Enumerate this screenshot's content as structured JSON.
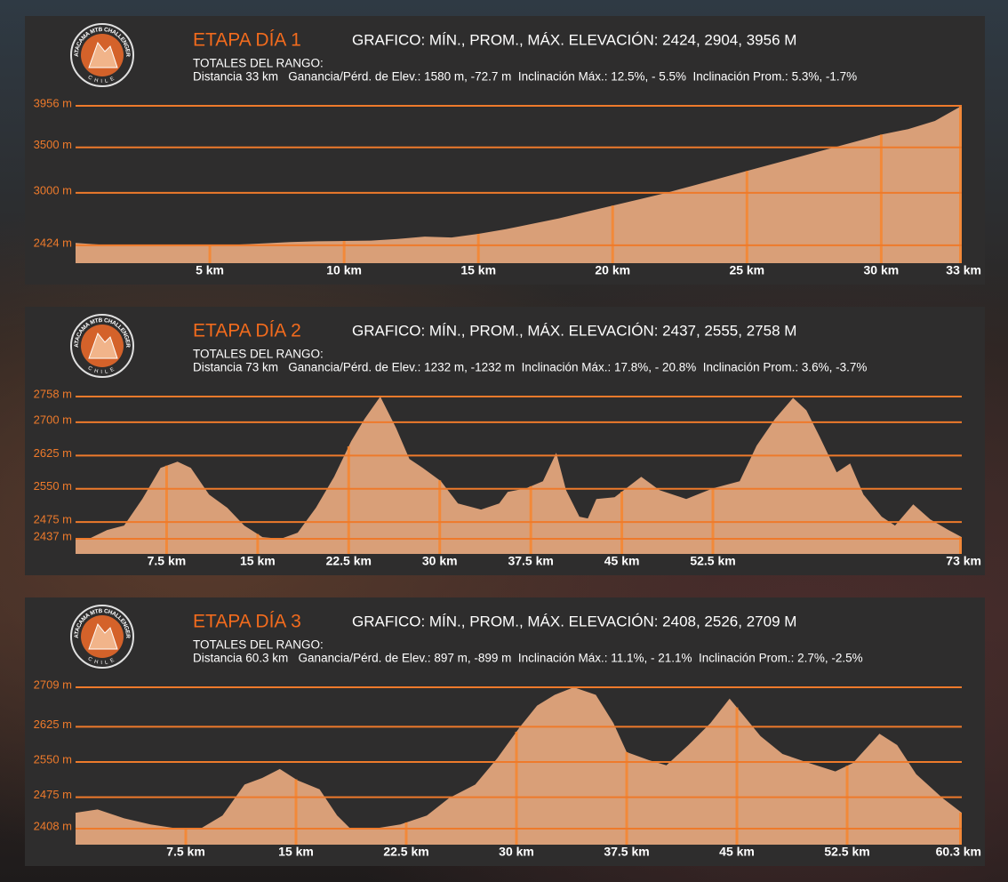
{
  "logo": {
    "name": "ATACAMA MTB CHALLENGER",
    "country": "CHILE"
  },
  "chart_data": [
    {
      "type": "area",
      "title": "ETAPA DÍA 1",
      "subtitle": "GRAFICO: MÍN., PROM., MÁX. ELEVACIÓN: 2424, 2904, 3956 M",
      "totals_label": "TOTALES DEL RANGO:",
      "totals": "Distancia 33 km   Ganancia/Pérd. de Elev.: 1580 m, -72.7 m  Inclinación Máx.: 12.5%, - 5.5%  Inclinación Prom.: 5.3%, -1.7%",
      "x": [
        0,
        1,
        2,
        3,
        4,
        5,
        6,
        7,
        8,
        9,
        10,
        11,
        12,
        13,
        14,
        15,
        16,
        17,
        18,
        19,
        20,
        21,
        22,
        23,
        24,
        25,
        26,
        27,
        28,
        29,
        30,
        31,
        32,
        33
      ],
      "values": [
        2450,
        2430,
        2424,
        2426,
        2428,
        2430,
        2432,
        2445,
        2460,
        2468,
        2472,
        2476,
        2495,
        2520,
        2510,
        2550,
        2600,
        2660,
        2720,
        2790,
        2860,
        2930,
        3000,
        3080,
        3160,
        3240,
        3320,
        3400,
        3480,
        3560,
        3640,
        3700,
        3790,
        3956
      ],
      "color": "#d99f78",
      "grid": true,
      "xlim": [
        0,
        33
      ],
      "xticks": [
        {
          "value": 5,
          "label": "5 km"
        },
        {
          "value": 10,
          "label": "10 km"
        },
        {
          "value": 15,
          "label": "15 km"
        },
        {
          "value": 20,
          "label": "20 km"
        },
        {
          "value": 25,
          "label": "25 km"
        },
        {
          "value": 30,
          "label": "30 km"
        },
        {
          "value": 33,
          "label": "33 km"
        }
      ],
      "ylim": [
        2228,
        3956
      ],
      "yticks": [
        {
          "value": 2424,
          "label": "2424 m"
        },
        {
          "value": 3000,
          "label": "3000 m"
        },
        {
          "value": 3500,
          "label": "3500 m"
        },
        {
          "value": 3956,
          "label": "3956 m"
        }
      ]
    },
    {
      "type": "area",
      "title": "ETAPA DÍA 2",
      "subtitle": "GRAFICO: MÍN., PROM., MÁX. ELEVACIÓN: 2437, 2555, 2758 M",
      "totals_label": "TOTALES DEL RANGO:",
      "totals": "Distancia 73 km   Ganancia/Pérd. de Elev.: 1232 m, -1232 m  Inclinación Máx.: 17.8%, - 20.8%  Inclinación Prom.: 3.6%, -3.7%",
      "x": [
        0,
        1.1,
        2.6,
        4.0,
        5.5,
        7.0,
        8.4,
        9.5,
        11.0,
        12.5,
        13.9,
        15.4,
        16.9,
        18.3,
        19.8,
        21.3,
        22.7,
        23.8,
        25.1,
        26.4,
        27.5,
        28.6,
        30.1,
        31.5,
        33.4,
        34.9,
        35.6,
        37.1,
        38.5,
        39.6,
        40.4,
        41.5,
        42.2,
        42.9,
        44.4,
        46.6,
        48.1,
        50.3,
        52.5,
        54.7,
        56.1,
        57.6,
        59.1,
        60.2,
        61.3,
        62.7,
        63.8,
        64.9,
        66.4,
        67.5,
        69.0,
        70.4,
        71.9,
        73.0
      ],
      "values": [
        2437,
        2437,
        2457,
        2467,
        2527,
        2597,
        2611,
        2597,
        2537,
        2507,
        2467,
        2441,
        2437,
        2451,
        2507,
        2577,
        2657,
        2707,
        2758,
        2687,
        2617,
        2597,
        2567,
        2517,
        2503,
        2517,
        2543,
        2551,
        2567,
        2631,
        2547,
        2487,
        2483,
        2527,
        2531,
        2577,
        2547,
        2527,
        2551,
        2567,
        2647,
        2707,
        2755,
        2727,
        2667,
        2587,
        2607,
        2537,
        2487,
        2467,
        2515,
        2481,
        2457,
        2441
      ],
      "color": "#d99f78",
      "grid": true,
      "xlim": [
        0,
        73
      ],
      "xticks": [
        {
          "value": 7.5,
          "label": "7.5 km"
        },
        {
          "value": 15,
          "label": "15 km"
        },
        {
          "value": 22.5,
          "label": "22.5 km"
        },
        {
          "value": 30,
          "label": "30 km"
        },
        {
          "value": 37.5,
          "label": "37.5 km"
        },
        {
          "value": 45,
          "label": "45 km"
        },
        {
          "value": 52.5,
          "label": "52.5 km"
        },
        {
          "value": 73,
          "label": "73 km"
        }
      ],
      "ylim": [
        2403,
        2758
      ],
      "yticks": [
        {
          "value": 2437,
          "label": "2437 m"
        },
        {
          "value": 2475,
          "label": "2475 m"
        },
        {
          "value": 2550,
          "label": "2550 m"
        },
        {
          "value": 2625,
          "label": "2625 m"
        },
        {
          "value": 2700,
          "label": "2700 m"
        },
        {
          "value": 2758,
          "label": "2758 m"
        }
      ]
    },
    {
      "type": "area",
      "title": "ETAPA DÍA 3",
      "subtitle": "GRAFICO: MÍN., PROM., MÁX. ELEVACIÓN: 2408, 2526, 2709 M",
      "totals_label": "TOTALES DEL RANGO:",
      "totals": "Distancia 60.3 km   Ganancia/Pérd. de Elev.: 897 m, -899 m  Inclinación Máx.: 11.1%, - 21.1%  Inclinación Prom.: 2.7%, -2.5%",
      "x": [
        0,
        1.5,
        3.3,
        5.1,
        7.0,
        8.5,
        10.0,
        11.5,
        12.7,
        13.9,
        15.1,
        16.6,
        17.8,
        18.7,
        20.3,
        22.1,
        23.9,
        25.4,
        27.2,
        28.7,
        30.2,
        31.4,
        32.6,
        33.9,
        35.4,
        36.6,
        37.5,
        39.0,
        40.2,
        41.7,
        43.2,
        44.5,
        45.4,
        46.6,
        48.1,
        49.9,
        51.7,
        52.9,
        54.7,
        55.9,
        57.2,
        59.0,
        60.3
      ],
      "values": [
        2442,
        2449,
        2430,
        2417,
        2408,
        2408,
        2436,
        2502,
        2516,
        2535,
        2511,
        2492,
        2436,
        2408,
        2408,
        2417,
        2436,
        2473,
        2502,
        2558,
        2623,
        2670,
        2693,
        2709,
        2693,
        2633,
        2571,
        2554,
        2543,
        2586,
        2633,
        2685,
        2651,
        2605,
        2567,
        2548,
        2530,
        2548,
        2610,
        2586,
        2524,
        2473,
        2442
      ],
      "color": "#d99f78",
      "grid": true,
      "xlim": [
        0,
        60.3
      ],
      "xticks": [
        {
          "value": 7.5,
          "label": "7.5 km"
        },
        {
          "value": 15,
          "label": "15 km"
        },
        {
          "value": 22.5,
          "label": "22.5 km"
        },
        {
          "value": 30,
          "label": "30 km"
        },
        {
          "value": 37.5,
          "label": "37.5 km"
        },
        {
          "value": 45,
          "label": "45 km"
        },
        {
          "value": 52.5,
          "label": "52.5 km"
        },
        {
          "value": 60.3,
          "label": "60.3 km"
        }
      ],
      "ylim": [
        2374,
        2709
      ],
      "yticks": [
        {
          "value": 2408,
          "label": "2408 m"
        },
        {
          "value": 2475,
          "label": "2475 m"
        },
        {
          "value": 2550,
          "label": "2550 m"
        },
        {
          "value": 2625,
          "label": "2625 m"
        },
        {
          "value": 2709,
          "label": "2709 m"
        }
      ]
    }
  ]
}
